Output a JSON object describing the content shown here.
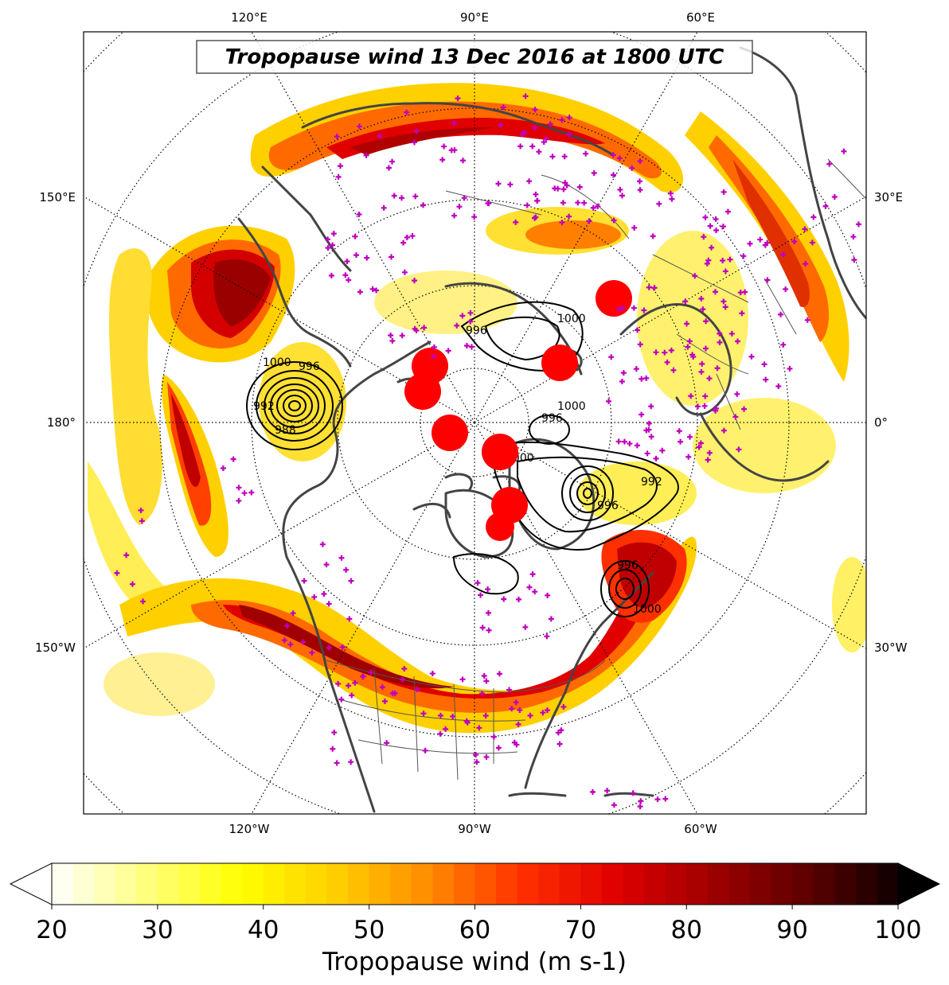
{
  "title": "Tropopause wind 13 Dec 2016 at 1800 UTC",
  "colorbar": {
    "label": "Tropopause wind (m s-1)",
    "ticks": [
      "20",
      "30",
      "40",
      "50",
      "60",
      "70",
      "80",
      "90",
      "100"
    ],
    "min": 20,
    "max": 100,
    "colormap": [
      "#ffffff",
      "#ffff80",
      "#ffff00",
      "#ffd000",
      "#ff8c00",
      "#ff3000",
      "#e00000",
      "#a00000",
      "#600000",
      "#100000"
    ]
  },
  "longitude_labels": {
    "top": [
      "120°E",
      "90°E",
      "60°E"
    ],
    "bottom": [
      "120°W",
      "90°W",
      "60°W"
    ],
    "left": [
      "150°E",
      "180°",
      "150°W"
    ],
    "right": [
      "30°E",
      "0°",
      "30°W"
    ]
  },
  "contour_labels": [
    "1000",
    "996",
    "992",
    "988",
    "1000",
    "996",
    "1000",
    "996",
    "992",
    "1000",
    "996",
    "1000",
    "996"
  ],
  "colors": {
    "station_marker": "#c000c0",
    "cyclone_marker": "#ff0000",
    "coastline": "#404040",
    "contour": "#000000"
  },
  "legend_items": {
    "stations": "radiosonde-stations",
    "cyclones": "tropopause-polar-vortices"
  }
}
